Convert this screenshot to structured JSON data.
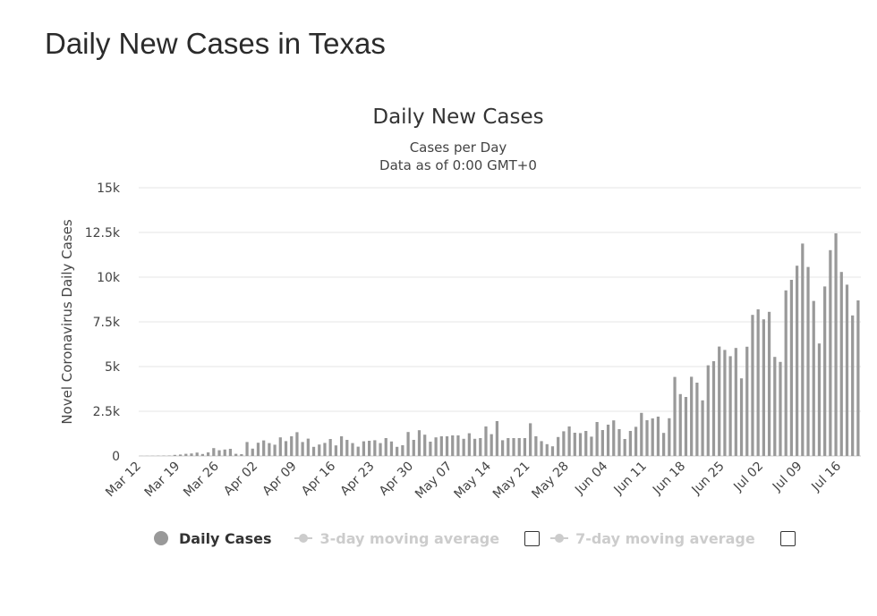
{
  "page": {
    "title": "Daily New Cases in Texas"
  },
  "legend": {
    "daily": "Daily Cases",
    "avg3": "3-day moving average",
    "avg7": "7-day moving average"
  },
  "colors": {
    "bar": "#999999",
    "grid": "#e6e6e6",
    "inactive": "#cccccc"
  },
  "chart_data": {
    "type": "bar",
    "title": "Daily New Cases",
    "subtitle_lines": [
      "Cases per Day",
      "Data as of 0:00 GMT+0"
    ],
    "ylabel": "Novel Coronavirus Daily Cases",
    "xlabel": "",
    "ylim": [
      0,
      15000
    ],
    "y_ticks": [
      0,
      2500,
      5000,
      7500,
      10000,
      12500,
      15000
    ],
    "y_tick_labels": [
      "0",
      "2.5k",
      "5k",
      "7.5k",
      "10k",
      "12.5k",
      "15k"
    ],
    "x_tick_labels": [
      "Mar 12",
      "Mar 19",
      "Mar 26",
      "Apr 02",
      "Apr 09",
      "Apr 16",
      "Apr 23",
      "Apr 30",
      "May 07",
      "May 14",
      "May 21",
      "May 28",
      "Jun 04",
      "Jun 11",
      "Jun 18",
      "Jun 25",
      "Jul 02",
      "Jul 09",
      "Jul 16"
    ],
    "grid": true,
    "legend_position": "bottom",
    "series": [
      {
        "name": "Daily Cases",
        "start": "Mar 12",
        "values": [
          5,
          8,
          10,
          15,
          20,
          25,
          60,
          80,
          120,
          140,
          190,
          110,
          200,
          440,
          320,
          360,
          400,
          120,
          100,
          780,
          410,
          740,
          870,
          720,
          630,
          1040,
          830,
          1100,
          1330,
          780,
          970,
          510,
          640,
          730,
          950,
          590,
          1100,
          900,
          720,
          520,
          820,
          850,
          880,
          720,
          1000,
          810,
          510,
          600,
          1340,
          900,
          1440,
          1190,
          800,
          1040,
          1100,
          1100,
          1150,
          1150,
          960,
          1270,
          960,
          1000,
          1650,
          1220,
          1950,
          880,
          1000,
          1000,
          1000,
          1000,
          1830,
          1100,
          830,
          660,
          540,
          1060,
          1380,
          1650,
          1300,
          1280,
          1400,
          1080,
          1900,
          1450,
          1750,
          1990,
          1500,
          950,
          1400,
          1630,
          2410,
          2000,
          2100,
          2200,
          1290,
          2110,
          4420,
          3460,
          3300,
          4430,
          4100,
          3110,
          5070,
          5300,
          6120,
          5930,
          5580,
          6040,
          4340,
          6110,
          7890,
          8200,
          7640,
          8060,
          5540,
          5260,
          9260,
          9850,
          10640,
          11880,
          10570,
          8670,
          6290,
          9480,
          11510,
          12450,
          10290,
          9580,
          7860,
          8700
        ]
      }
    ]
  }
}
